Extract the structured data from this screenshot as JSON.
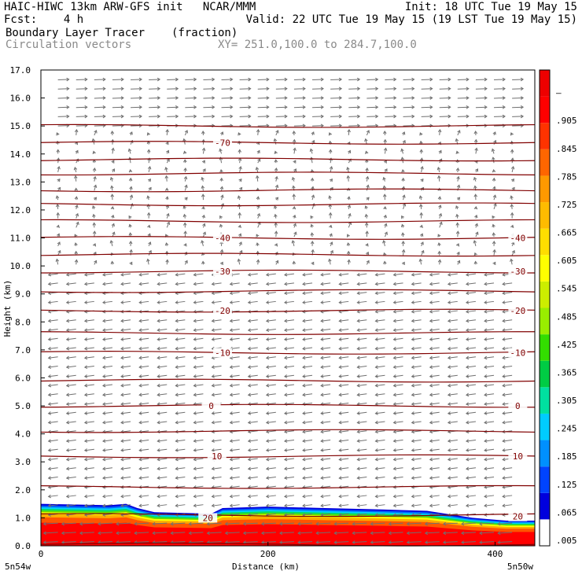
{
  "header": {
    "line1_left": "HAIC-HIWC 13km ARW-GFS init   NCAR/MMM",
    "line1_right": "Init: 18 UTC Tue 19 May 15",
    "line2_left": "Fcst:    4 h",
    "line2_right": "Valid: 22 UTC Tue 19 May 15 (19 LST Tue 19 May 15)",
    "line3_field": "Boundary Layer Tracer",
    "line3_unit": "(fraction)",
    "line4_field": "Circulation vectors",
    "line4_xy": "XY= 251.0,100.0 to 284.7,100.0"
  },
  "chart_data": {
    "type": "heatmap",
    "xlabel": "Distance (km)",
    "ylabel": "Height (km)",
    "xlim": [
      0,
      435
    ],
    "ylim": [
      0,
      17
    ],
    "x_ticks": [
      "0",
      "200",
      "400"
    ],
    "y_ticks": [
      "0.0",
      "1.0",
      "2.0",
      "3.0",
      "4.0",
      "5.0",
      "6.0",
      "7.0",
      "8.0",
      "9.0",
      "10.0",
      "11.0",
      "12.0",
      "13.0",
      "14.0",
      "15.0",
      "16.0",
      "17.0"
    ],
    "x_endpoints": {
      "left": "5n54w",
      "right": "5n50w"
    },
    "colorbar_labels": [
      ".005",
      ".065",
      ".125",
      ".185",
      ".245",
      ".305",
      ".365",
      ".425",
      ".485",
      ".545",
      ".605",
      ".665",
      ".725",
      ".785",
      ".845",
      ".905",
      "–"
    ],
    "colorbar_colors": [
      "#ffffff",
      "#0000dd",
      "#0044ff",
      "#0090ff",
      "#00ccff",
      "#00e0a0",
      "#00cc44",
      "#33dd00",
      "#99ee00",
      "#ccee00",
      "#ffff00",
      "#ffdd00",
      "#ffbb00",
      "#ff9900",
      "#ff6600",
      "#ff3300",
      "#ff0000",
      "#ee0000"
    ],
    "contour_color": "#800000",
    "vector_color": "#707070",
    "temperature_contour_labels": [
      {
        "label": "-70",
        "x": 160,
        "y": 14.4
      },
      {
        "label": "-40",
        "x": 160,
        "y": 11.0
      },
      {
        "label": "-40",
        "x": 420,
        "y": 11.0
      },
      {
        "label": "-30",
        "x": 160,
        "y": 9.8
      },
      {
        "label": "-30",
        "x": 420,
        "y": 9.8
      },
      {
        "label": "-20",
        "x": 160,
        "y": 8.4
      },
      {
        "label": "-20",
        "x": 420,
        "y": 8.4
      },
      {
        "label": "-10",
        "x": 160,
        "y": 6.9
      },
      {
        "label": "-10",
        "x": 420,
        "y": 6.9
      },
      {
        "label": "0",
        "x": 150,
        "y": 5.0
      },
      {
        "label": "0",
        "x": 420,
        "y": 5.0
      },
      {
        "label": "10",
        "x": 155,
        "y": 3.2
      },
      {
        "label": "10",
        "x": 420,
        "y": 3.2
      },
      {
        "label": "20",
        "x": 147,
        "y": 1.0
      },
      {
        "label": "20",
        "x": 420,
        "y": 1.05
      }
    ],
    "contour_levels_km": [
      0.05,
      1.1,
      2.1,
      3.2,
      4.1,
      5.0,
      5.9,
      6.9,
      7.6,
      8.4,
      9.1,
      9.8,
      10.4,
      11.0,
      11.6,
      12.2,
      12.7,
      13.3,
      13.8,
      14.4,
      15.0
    ],
    "tracer_top_km": [
      [
        0,
        1.5
      ],
      [
        60,
        1.45
      ],
      [
        75,
        1.5
      ],
      [
        85,
        1.35
      ],
      [
        100,
        1.2
      ],
      [
        150,
        1.15
      ],
      [
        160,
        1.35
      ],
      [
        200,
        1.4
      ],
      [
        250,
        1.35
      ],
      [
        300,
        1.3
      ],
      [
        340,
        1.25
      ],
      [
        380,
        1.0
      ],
      [
        410,
        0.9
      ],
      [
        435,
        0.9
      ]
    ],
    "wind_regimes": [
      {
        "z_from": 15.0,
        "z_to": 17.0,
        "direction": "eastward"
      },
      {
        "z_from": 10.0,
        "z_to": 15.0,
        "direction": "light-variable"
      },
      {
        "z_from": 1.0,
        "z_to": 10.0,
        "direction": "westward"
      },
      {
        "z_from": 0.0,
        "z_to": 1.0,
        "direction": "westward-strong"
      }
    ]
  }
}
